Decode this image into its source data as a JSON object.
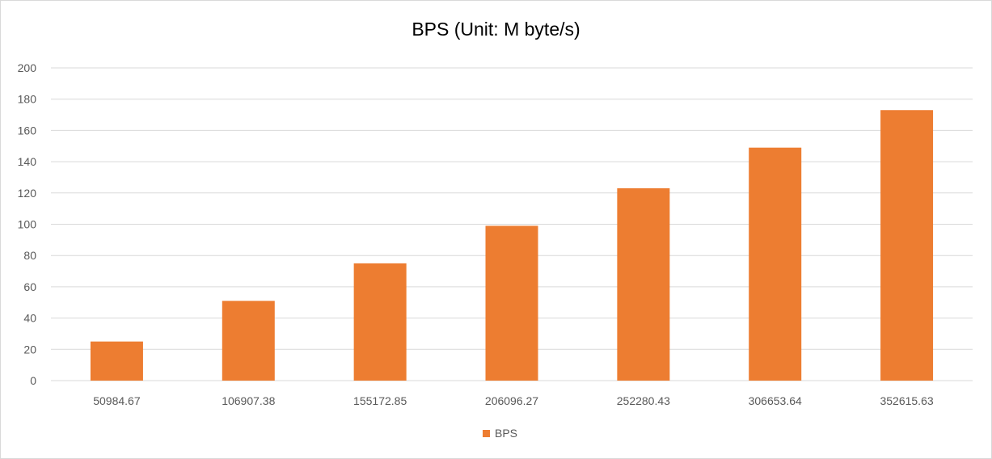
{
  "chart_data": {
    "type": "bar",
    "title": "BPS (Unit: M byte/s)",
    "xlabel": "",
    "ylabel": "",
    "categories": [
      "50984.67",
      "106907.38",
      "155172.85",
      "206096.27",
      "252280.43",
      "306653.64",
      "352615.63"
    ],
    "series": [
      {
        "name": "BPS",
        "color": "#ed7d31",
        "values": [
          25,
          51,
          75,
          99,
          123,
          149,
          173
        ]
      }
    ],
    "ylim": [
      0,
      200
    ],
    "yticks": [
      "0",
      "20",
      "40",
      "60",
      "80",
      "100",
      "120",
      "140",
      "160",
      "180",
      "200"
    ],
    "grid": true,
    "legend_position": "bottom",
    "gridline_color": "#d9d9d9"
  }
}
